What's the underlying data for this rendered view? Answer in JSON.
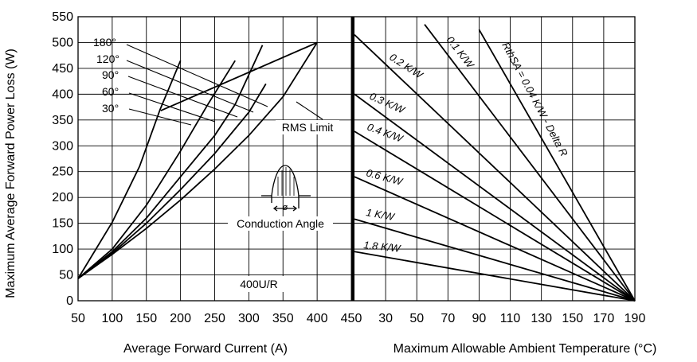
{
  "chart_data": [
    {
      "type": "line",
      "title": "",
      "xlabel": "Average Forward Current (A)",
      "ylabel": "Maximum Average Forward Power Loss (W)",
      "xlim": [
        50,
        450
      ],
      "ylim": [
        0,
        550
      ],
      "x_ticks": [
        "50",
        "100",
        "150",
        "200",
        "250",
        "300",
        "350",
        "400",
        "450"
      ],
      "y_ticks": [
        "0",
        "50",
        "100",
        "150",
        "200",
        "250",
        "300",
        "350",
        "400",
        "450",
        "500",
        "550"
      ],
      "grid": true,
      "series": [
        {
          "name": "180°",
          "points": [
            [
              50,
              43
            ],
            [
              100,
              90
            ],
            [
              150,
              140
            ],
            [
              200,
              195
            ],
            [
              250,
              255
            ],
            [
              300,
              320
            ],
            [
              350,
              395
            ],
            [
              400,
              500
            ]
          ]
        },
        {
          "name": "120°",
          "points": [
            [
              50,
              43
            ],
            [
              100,
              92
            ],
            [
              150,
              150
            ],
            [
              200,
              215
            ],
            [
              250,
              285
            ],
            [
              300,
              365
            ],
            [
              325,
              420
            ]
          ]
        },
        {
          "name": "90°",
          "points": [
            [
              50,
              43
            ],
            [
              100,
              95
            ],
            [
              150,
              160
            ],
            [
              200,
              240
            ],
            [
              250,
              320
            ],
            [
              280,
              380
            ],
            [
              320,
              495
            ]
          ]
        },
        {
          "name": "60°",
          "points": [
            [
              50,
              43
            ],
            [
              100,
              100
            ],
            [
              150,
              185
            ],
            [
              200,
              290
            ],
            [
              240,
              380
            ],
            [
              280,
              465
            ]
          ]
        },
        {
          "name": "30°",
          "points": [
            [
              50,
              43
            ],
            [
              100,
              152
            ],
            [
              140,
              260
            ],
            [
              170,
              370
            ],
            [
              200,
              465
            ]
          ]
        },
        {
          "name": "RMS Limit",
          "points": [
            [
              171,
              368
            ],
            [
              400,
              500
            ]
          ]
        }
      ],
      "annotations": [
        "RMS Limit",
        "Conduction Angle",
        "400U/R",
        "ø"
      ]
    },
    {
      "type": "line",
      "title": "",
      "xlabel": "Maximum Allowable Ambient Temperature (°C)",
      "ylabel": "",
      "xlim": [
        10,
        190
      ],
      "x_ticks": [
        "30",
        "50",
        "70",
        "90",
        "110",
        "130",
        "150",
        "170",
        "190"
      ],
      "grid": true,
      "series": [
        {
          "name": "RthSA = 0.04 K/W - Delta R",
          "points": [
            [
              90,
              525
            ],
            [
              190,
              0
            ]
          ]
        },
        {
          "name": "0.1 K/W",
          "points": [
            [
              55,
              535
            ],
            [
              190,
              0
            ]
          ]
        },
        {
          "name": "0.2 K/W",
          "points": [
            [
              10,
              515
            ],
            [
              190,
              0
            ]
          ]
        },
        {
          "name": "0.3 K/W",
          "points": [
            [
              10,
              400
            ],
            [
              190,
              0
            ]
          ]
        },
        {
          "name": "0.4 K/W",
          "points": [
            [
              10,
              328
            ],
            [
              190,
              0
            ]
          ]
        },
        {
          "name": "0.6 K/W",
          "points": [
            [
              10,
              240
            ],
            [
              190,
              0
            ]
          ]
        },
        {
          "name": "1 K/W",
          "points": [
            [
              10,
              158
            ],
            [
              190,
              0
            ]
          ]
        },
        {
          "name": "1.8 K/W",
          "points": [
            [
              10,
              95
            ],
            [
              190,
              0
            ]
          ]
        }
      ]
    }
  ]
}
